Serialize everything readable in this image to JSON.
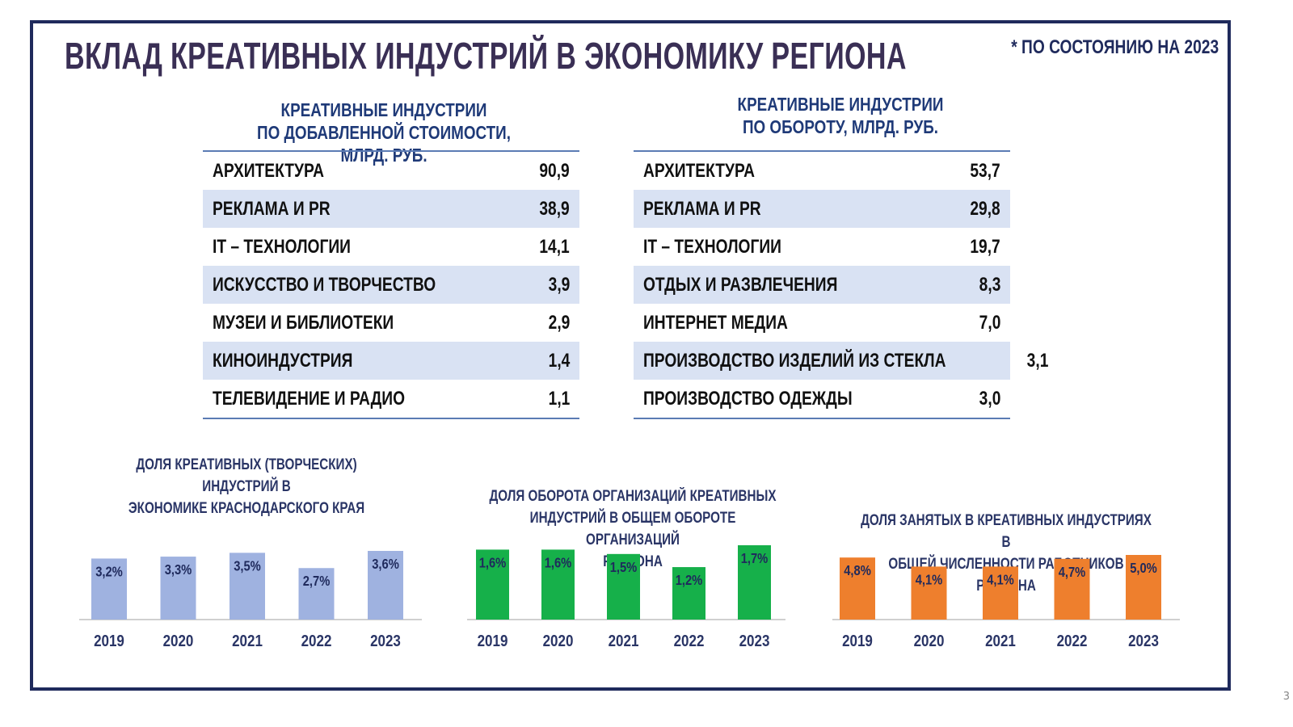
{
  "title": "ВКЛАД КРЕАТИВНЫХ ИНДУСТРИЙ В ЭКОНОМИКУ РЕГИОНА",
  "note": "* ПО СОСТОЯНИЮ НА 2023",
  "page_number": "3",
  "table_left": {
    "header_line1": "КРЕАТИВНЫЕ ИНДУСТРИИ",
    "header_line2": "ПО ДОБАВЛЕННОЙ СТОИМОСТИ,  МЛРД. РУБ.",
    "rows": [
      {
        "label": "АРХИТЕКТУРА",
        "value": "90,9"
      },
      {
        "label": "РЕКЛАМА И PR",
        "value": "38,9"
      },
      {
        "label": "IT – ТЕХНОЛОГИИ",
        "value": "14,1"
      },
      {
        "label": "ИСКУССТВО И ТВОРЧЕСТВО",
        "value": "3,9"
      },
      {
        "label": "МУЗЕИ И БИБЛИОТЕКИ",
        "value": "2,9"
      },
      {
        "label": "КИНОИНДУСТРИЯ",
        "value": "1,4"
      },
      {
        "label": "ТЕЛЕВИДЕНИЕ И РАДИО",
        "value": "1,1"
      }
    ]
  },
  "table_right": {
    "header_line1": "КРЕАТИВНЫЕ ИНДУСТРИИ",
    "header_line2": "ПО ОБОРОТУ,  МЛРД. РУБ.",
    "rows": [
      {
        "label": "АРХИТЕКТУРА",
        "value": "53,7"
      },
      {
        "label": "РЕКЛАМА И PR",
        "value": "29,8"
      },
      {
        "label": "IT – ТЕХНОЛОГИИ",
        "value": "19,7"
      },
      {
        "label": "ОТДЫХ И РАЗВЛЕЧЕНИЯ",
        "value": "8,3"
      },
      {
        "label": "ИНТЕРНЕТ МЕДИА",
        "value": "7,0"
      },
      {
        "label": "ПРОИЗВОДСТВО ИЗДЕЛИЙ ИЗ СТЕКЛА",
        "value": "3,1"
      },
      {
        "label": "ПРОИЗВОДСТВО ОДЕЖДЫ",
        "value": "3,0"
      }
    ]
  },
  "chart_data": [
    {
      "type": "bar",
      "title_lines": [
        "ДОЛЯ КРЕАТИВНЫХ (ТВОРЧЕСКИХ) ИНДУСТРИЙ В",
        "ЭКОНОМИКЕ КРАСНОДАРСКОГО КРАЯ"
      ],
      "categories": [
        "2019",
        "2020",
        "2021",
        "2022",
        "2023"
      ],
      "values": [
        3.2,
        3.3,
        3.5,
        2.7,
        3.6
      ],
      "value_labels": [
        "3,2%",
        "3,3%",
        "3,5%",
        "2,7%",
        "3,6%"
      ],
      "unit": "%",
      "color": "#9fb2e0",
      "label_color": "#1f2a5c",
      "grid": false,
      "legend": "none"
    },
    {
      "type": "bar",
      "title_lines": [
        "ДОЛЯ ОБОРОТА ОРГАНИЗАЦИЙ КРЕАТИВНЫХ",
        "ИНДУСТРИЙ В ОБЩЕМ ОБОРОТЕ ОРГАНИЗАЦИЙ",
        "РЕГИОНА"
      ],
      "categories": [
        "2019",
        "2020",
        "2021",
        "2022",
        "2023"
      ],
      "values": [
        1.6,
        1.6,
        1.5,
        1.2,
        1.7
      ],
      "value_labels": [
        "1,6%",
        "1,6%",
        "1,5%",
        "1,2%",
        "1,7%"
      ],
      "unit": "%",
      "color": "#16b04a",
      "label_color": "#1f2a5c",
      "grid": false,
      "legend": "none"
    },
    {
      "type": "bar",
      "title_lines": [
        "ДОЛЯ ЗАНЯТЫХ В КРЕАТИВНЫХ ИНДУСТРИЯХ В",
        "ОБЩЕЙ ЧИСЛЕННОСТИ РАБОТНИКОВ РЕГИОНА"
      ],
      "categories": [
        "2019",
        "2020",
        "2021",
        "2022",
        "2023"
      ],
      "values": [
        4.8,
        4.1,
        4.1,
        4.7,
        5.0
      ],
      "value_labels": [
        "4,8%",
        "4,1%",
        "4,1%",
        "4,7%",
        "5,0%"
      ],
      "unit": "%",
      "color": "#ee7f2d",
      "label_color": "#1f2a5c",
      "grid": false,
      "legend": "none"
    }
  ]
}
